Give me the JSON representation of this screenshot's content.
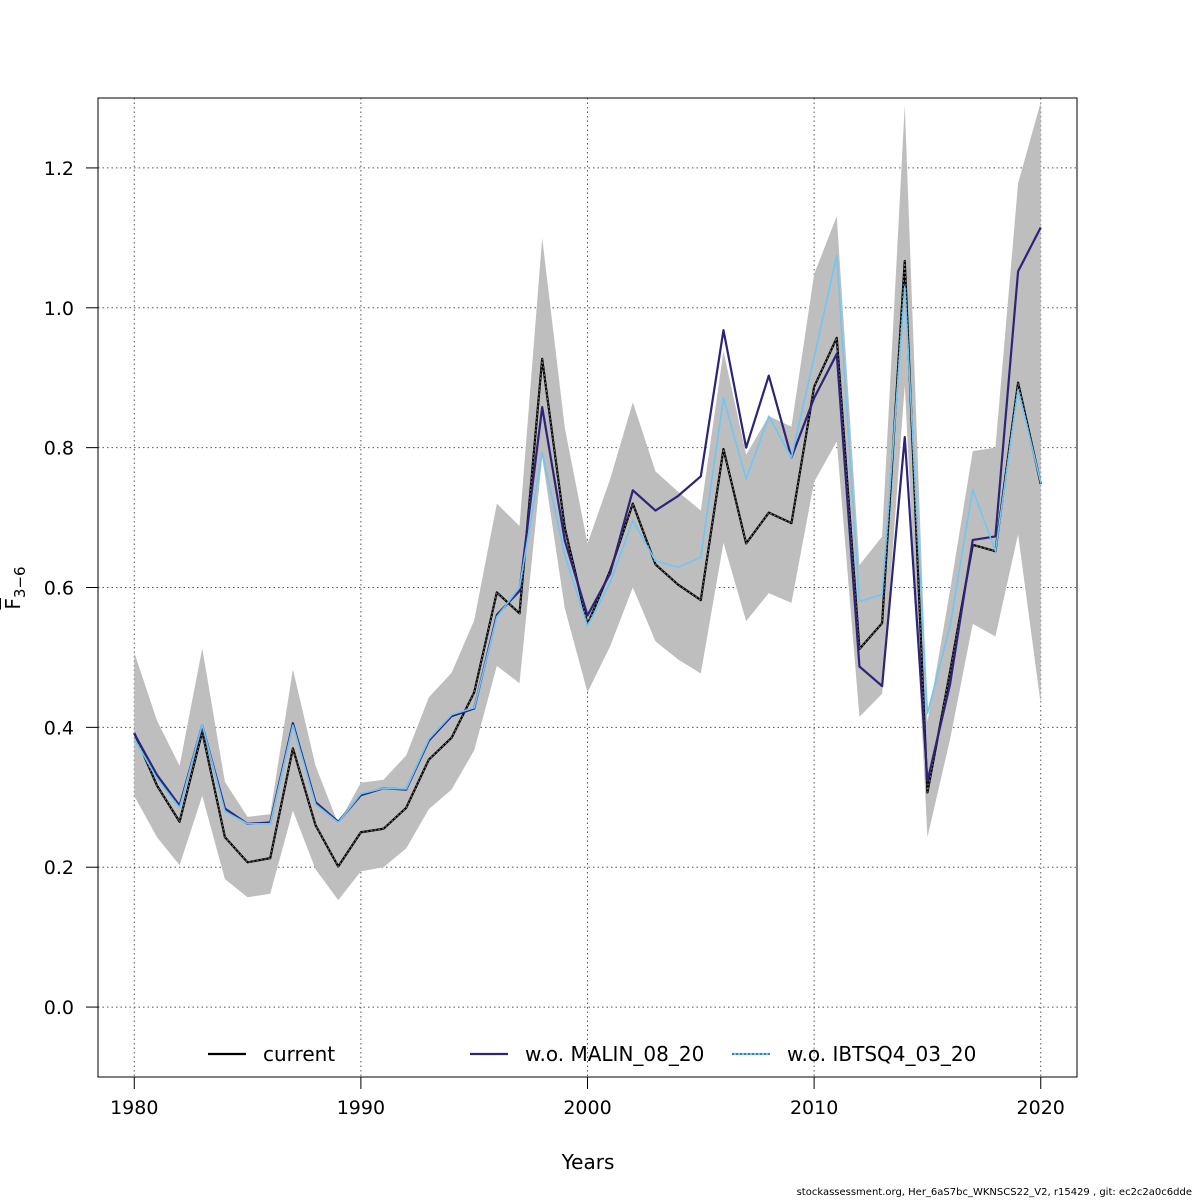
{
  "chart_data": {
    "type": "line",
    "xlabel": "Years",
    "ylabel": "F",
    "ylabel_sub": "3−6",
    "xlim": [
      1978.4,
      2021.6
    ],
    "ylim": [
      -0.1,
      1.3
    ],
    "x_ticks": [
      1980,
      1990,
      2000,
      2010,
      2020
    ],
    "y_ticks": [
      0.0,
      0.2,
      0.4,
      0.6,
      0.8,
      1.0,
      1.2
    ],
    "y_tick_labels": [
      "0.0",
      "0.2",
      "0.4",
      "0.6",
      "0.8",
      "1.0",
      "1.2"
    ],
    "grid": true,
    "legend_position": "bottom",
    "x": [
      1980,
      1981,
      1982,
      1983,
      1984,
      1985,
      1986,
      1987,
      1988,
      1989,
      1990,
      1991,
      1992,
      1993,
      1994,
      1995,
      1996,
      1997,
      1998,
      1999,
      2000,
      2001,
      2002,
      2003,
      2004,
      2005,
      2006,
      2007,
      2008,
      2009,
      2010,
      2011,
      2012,
      2013,
      2014,
      2015,
      2016,
      2017,
      2018,
      2019,
      2020
    ],
    "confidence_band": {
      "color": "#bebebe",
      "upper": [
        0.507,
        0.41,
        0.345,
        0.513,
        0.322,
        0.272,
        0.276,
        0.483,
        0.345,
        0.262,
        0.321,
        0.325,
        0.36,
        0.443,
        0.478,
        0.553,
        0.72,
        0.688,
        1.1,
        0.828,
        0.663,
        0.755,
        0.865,
        0.766,
        0.737,
        0.71,
        0.938,
        0.79,
        0.845,
        0.83,
        1.048,
        1.131,
        0.632,
        0.673,
        1.29,
        0.408,
        0.596,
        0.795,
        0.8,
        1.178,
        1.294
      ],
      "lower": [
        0.302,
        0.243,
        0.203,
        0.302,
        0.183,
        0.157,
        0.162,
        0.281,
        0.197,
        0.153,
        0.194,
        0.2,
        0.227,
        0.283,
        0.311,
        0.367,
        0.488,
        0.463,
        0.786,
        0.57,
        0.45,
        0.516,
        0.6,
        0.523,
        0.497,
        0.477,
        0.664,
        0.552,
        0.592,
        0.578,
        0.751,
        0.809,
        0.415,
        0.448,
        0.889,
        0.243,
        0.383,
        0.548,
        0.53,
        0.676,
        0.433
      ]
    },
    "series": [
      {
        "name": "current",
        "color": "#000000",
        "style": "solid",
        "values": [
          0.392,
          0.317,
          0.265,
          0.394,
          0.243,
          0.207,
          0.213,
          0.37,
          0.26,
          0.201,
          0.25,
          0.255,
          0.285,
          0.354,
          0.385,
          0.45,
          0.593,
          0.563,
          0.927,
          0.685,
          0.547,
          0.624,
          0.72,
          0.633,
          0.604,
          0.582,
          0.798,
          0.663,
          0.707,
          0.692,
          0.887,
          0.957,
          0.512,
          0.549,
          1.067,
          0.307,
          0.48,
          0.661,
          0.652,
          0.893,
          0.748
        ]
      },
      {
        "name": "w.o. MALIN_08_20",
        "color": "#2b2478",
        "style": "solid",
        "values": [
          0.391,
          0.332,
          0.288,
          0.403,
          0.284,
          0.262,
          0.264,
          0.406,
          0.293,
          0.265,
          0.303,
          0.313,
          0.311,
          0.381,
          0.416,
          0.427,
          0.561,
          0.595,
          0.858,
          0.667,
          0.56,
          0.62,
          0.739,
          0.71,
          0.731,
          0.759,
          0.968,
          0.8,
          0.903,
          0.786,
          0.871,
          0.934,
          0.487,
          0.459,
          0.815,
          0.323,
          0.462,
          0.668,
          0.673,
          1.052,
          1.115
        ]
      },
      {
        "name": "w.o. IBTSQ4_03_20",
        "color": "#6ec6f5",
        "style": "solid",
        "values": [
          0.384,
          0.327,
          0.285,
          0.404,
          0.28,
          0.262,
          0.262,
          0.403,
          0.29,
          0.264,
          0.305,
          0.313,
          0.312,
          0.383,
          0.418,
          0.428,
          0.558,
          0.6,
          0.793,
          0.646,
          0.545,
          0.607,
          0.696,
          0.638,
          0.629,
          0.643,
          0.871,
          0.755,
          0.845,
          0.786,
          0.929,
          1.075,
          0.58,
          0.59,
          1.03,
          0.42,
          0.545,
          0.74,
          0.652,
          0.883,
          0.75
        ]
      }
    ]
  },
  "footer": "stockassessment.org, Her_6aS7bc_WKNSCS22_V2, r15429 , git: ec2c2a0c6dde"
}
